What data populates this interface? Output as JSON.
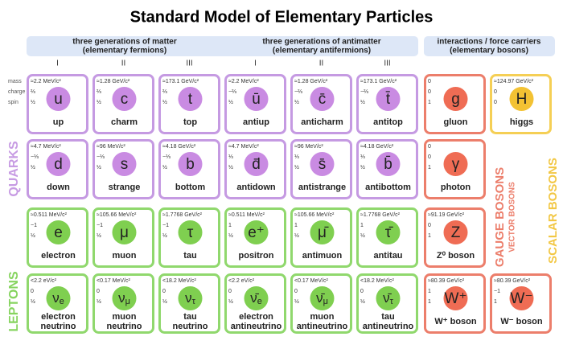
{
  "title": "Standard Model of Elementary Particles",
  "headers": {
    "matter": [
      "three generations of matter",
      "(elementary fermions)"
    ],
    "antimatter": [
      "three generations of antimatter",
      "(elementary antifermions)"
    ],
    "bosons": [
      "interactions / force carriers",
      "(elementary bosons)"
    ]
  },
  "generations": [
    "I",
    "II",
    "III",
    "I",
    "II",
    "III"
  ],
  "property_labels": [
    "mass",
    "charge",
    "spin"
  ],
  "side_labels": {
    "quarks": "QUARKS",
    "leptons": "LEPTONS",
    "gauge": "GAUGE BOSONS",
    "vector": "VECTOR BOSONS",
    "scalar": "SCALAR BOSONS"
  },
  "grid": [
    [
      {
        "mass": "≈2.2 MeV/c²",
        "charge": "⅔",
        "spin": "½",
        "symbol": "u",
        "name": [
          "up"
        ]
      },
      {
        "mass": "≈1.28 GeV/c²",
        "charge": "⅔",
        "spin": "½",
        "symbol": "c",
        "name": [
          "charm"
        ]
      },
      {
        "mass": "≈173.1 GeV/c²",
        "charge": "⅔",
        "spin": "½",
        "symbol": "t",
        "name": [
          "top"
        ]
      },
      {
        "mass": "≈2.2 MeV/c²",
        "charge": "−⅔",
        "spin": "½",
        "symbol": "ū",
        "name": [
          "antiup"
        ]
      },
      {
        "mass": "≈1.28 GeV/c²",
        "charge": "−⅔",
        "spin": "½",
        "symbol": "c̄",
        "name": [
          "anticharm"
        ]
      },
      {
        "mass": "≈173.1 GeV/c²",
        "charge": "−⅔",
        "spin": "½",
        "symbol": "t̄",
        "name": [
          "antitop"
        ]
      },
      {
        "mass": "0",
        "charge": "0",
        "spin": "1",
        "symbol": "g",
        "name": [
          "gluon"
        ]
      },
      {
        "mass": "≈124.97 GeV/c²",
        "charge": "0",
        "spin": "0",
        "symbol": "H",
        "name": [
          "higgs"
        ]
      }
    ],
    [
      {
        "mass": "≈4.7 MeV/c²",
        "charge": "−⅓",
        "spin": "½",
        "symbol": "d",
        "name": [
          "down"
        ]
      },
      {
        "mass": "≈96 MeV/c²",
        "charge": "−⅓",
        "spin": "½",
        "symbol": "s",
        "name": [
          "strange"
        ]
      },
      {
        "mass": "≈4.18 GeV/c²",
        "charge": "−⅓",
        "spin": "½",
        "symbol": "b",
        "name": [
          "bottom"
        ]
      },
      {
        "mass": "≈4.7 MeV/c²",
        "charge": "⅓",
        "spin": "½",
        "symbol": "d̄",
        "name": [
          "antidown"
        ]
      },
      {
        "mass": "≈96 MeV/c²",
        "charge": "⅓",
        "spin": "½",
        "symbol": "s̄",
        "name": [
          "antistrange"
        ]
      },
      {
        "mass": "≈4.18 GeV/c²",
        "charge": "⅓",
        "spin": "½",
        "symbol": "b̄",
        "name": [
          "antibottom"
        ]
      },
      {
        "mass": "0",
        "charge": "0",
        "spin": "1",
        "symbol": "γ",
        "name": [
          "photon"
        ]
      },
      null
    ],
    [
      {
        "mass": "≈0.511 MeV/c²",
        "charge": "−1",
        "spin": "½",
        "symbol": "e",
        "name": [
          "electron"
        ]
      },
      {
        "mass": "≈105.66 MeV/c²",
        "charge": "−1",
        "spin": "½",
        "symbol": "μ",
        "name": [
          "muon"
        ]
      },
      {
        "mass": "≈1.7768 GeV/c²",
        "charge": "−1",
        "spin": "½",
        "symbol": "τ",
        "name": [
          "tau"
        ]
      },
      {
        "mass": "≈0.511 MeV/c²",
        "charge": "1",
        "spin": "½",
        "symbol": "e⁺",
        "name": [
          "positron"
        ]
      },
      {
        "mass": "≈105.66 MeV/c²",
        "charge": "1",
        "spin": "½",
        "symbol": "μ̄",
        "name": [
          "antimuon"
        ]
      },
      {
        "mass": "≈1.7768 GeV/c²",
        "charge": "1",
        "spin": "½",
        "symbol": "τ̄",
        "name": [
          "antitau"
        ]
      },
      {
        "mass": "≈91.19 GeV/c²",
        "charge": "0",
        "spin": "1",
        "symbol": "Z",
        "name": [
          "Z⁰ boson"
        ]
      },
      null
    ],
    [
      {
        "mass": "<2.2 eV/c²",
        "charge": "0",
        "spin": "½",
        "symbol": "ν",
        "sub": "e",
        "name": [
          "electron",
          "neutrino"
        ]
      },
      {
        "mass": "<0.17 MeV/c²",
        "charge": "0",
        "spin": "½",
        "symbol": "ν",
        "sub": "μ",
        "name": [
          "muon",
          "neutrino"
        ]
      },
      {
        "mass": "<18.2 MeV/c²",
        "charge": "0",
        "spin": "½",
        "symbol": "ν",
        "sub": "τ",
        "name": [
          "tau",
          "neutrino"
        ]
      },
      {
        "mass": "<2.2 eV/c²",
        "charge": "0",
        "spin": "½",
        "symbol": "ν̄",
        "sub": "e",
        "name": [
          "electron",
          "antineutrino"
        ]
      },
      {
        "mass": "<0.17 MeV/c²",
        "charge": "0",
        "spin": "½",
        "symbol": "ν̄",
        "sub": "μ",
        "name": [
          "muon",
          "antineutrino"
        ]
      },
      {
        "mass": "<18.2 MeV/c²",
        "charge": "0",
        "spin": "½",
        "symbol": "ν̄",
        "sub": "τ",
        "name": [
          "tau",
          "antineutrino"
        ]
      },
      {
        "mass": "≈80.39 GeV/c²",
        "charge": "1",
        "spin": "1",
        "symbol": "W⁺",
        "name": [
          "W⁺ boson"
        ]
      },
      {
        "mass": "≈80.39 GeV/c²",
        "charge": "−1",
        "spin": "1",
        "symbol": "W⁻",
        "name": [
          "W⁻ boson"
        ]
      }
    ]
  ]
}
